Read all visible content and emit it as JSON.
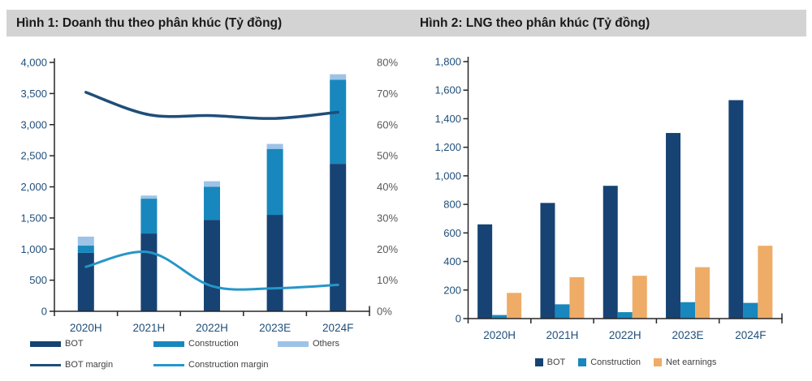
{
  "header": {
    "band_color": "#d3d3d3"
  },
  "colors": {
    "axis_line": "#262626",
    "axis_label_navy": "#1F4E79",
    "axis_label_gray": "#595959",
    "legend_text": "#404040",
    "bot_navy": "#164373",
    "construction_blue": "#1887BD",
    "others_light_blue": "#9DC3E6",
    "net_earnings_orange": "#EFAC67",
    "bot_margin_line": "#1F4E79",
    "construction_margin_line": "#2696C9"
  },
  "chart_data": [
    {
      "type": "bar",
      "subtype": "stacked-bars-with-lines-dual-axis",
      "title": "Hình 1: Doanh thu theo phân khúc (Tỷ đồng)",
      "categories": [
        "2020H",
        "2021H",
        "2022H",
        "2023E",
        "2024F"
      ],
      "bar_series": [
        {
          "name": "BOT",
          "color": "#164373",
          "values": [
            940,
            1250,
            1470,
            1550,
            2370
          ]
        },
        {
          "name": "Construction",
          "color": "#1887BD",
          "values": [
            115,
            560,
            530,
            1060,
            1350
          ]
        },
        {
          "name": "Others",
          "color": "#9DC3E6",
          "values": [
            145,
            50,
            90,
            80,
            90
          ]
        }
      ],
      "line_series": [
        {
          "name": "BOT margin",
          "color": "#1F4E79",
          "width": 3.5,
          "axis": "right",
          "values_pct": [
            70.4,
            63.2,
            62.9,
            62.0,
            64.0
          ]
        },
        {
          "name": "Construction margin",
          "color": "#2696C9",
          "width": 3,
          "axis": "right",
          "values_pct": [
            14.3,
            19.0,
            8.1,
            7.4,
            8.5
          ]
        }
      ],
      "left_axis": {
        "min": 0,
        "max": 4000,
        "step": 500,
        "tick_labels": [
          "4,000",
          "3,500",
          "3,000",
          "2,500",
          "2,000",
          "1,500",
          "1,000",
          "500",
          "0"
        ]
      },
      "right_axis": {
        "min": 0,
        "max": 80,
        "step": 10,
        "tick_labels": [
          "80%",
          "70%",
          "60%",
          "50%",
          "40%",
          "30%",
          "20%",
          "10%",
          "0%"
        ]
      },
      "grid": false,
      "legend_position": "bottom-left-two-rows"
    },
    {
      "type": "bar",
      "subtype": "grouped",
      "title": "Hình 2: LNG theo phân khúc (Tỷ đồng)",
      "categories": [
        "2020H",
        "2021H",
        "2022H",
        "2023E",
        "2024F"
      ],
      "series": [
        {
          "name": "BOT",
          "color": "#164373",
          "values": [
            660,
            810,
            930,
            1300,
            1530
          ]
        },
        {
          "name": "Construction",
          "color": "#1887BD",
          "values": [
            25,
            100,
            45,
            115,
            110
          ]
        },
        {
          "name": "Net earnings",
          "color": "#EFAC67",
          "values": [
            180,
            290,
            300,
            360,
            510
          ]
        }
      ],
      "y_axis": {
        "min": 0,
        "max": 1800,
        "step": 200,
        "tick_labels": [
          "1,800",
          "1,600",
          "1,400",
          "1,200",
          "1,000",
          "800",
          "600",
          "400",
          "200",
          "0"
        ]
      },
      "grid": false,
      "legend_position": "bottom-center"
    }
  ]
}
